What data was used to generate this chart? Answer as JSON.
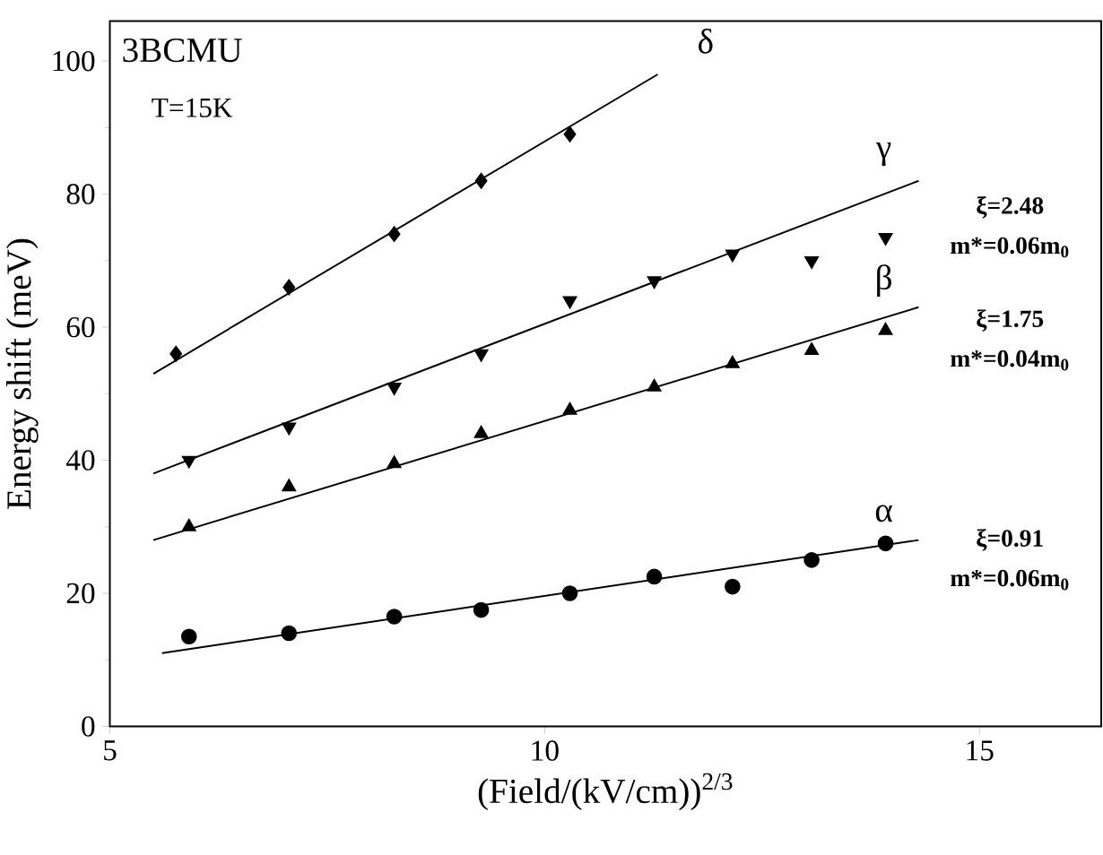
{
  "chart_data": {
    "type": "scatter",
    "title": "3BCMU",
    "subtitle": "T=15K",
    "xlabel": "(Field/(kV/cm))$^{2/3}$",
    "ylabel": "Energy shift (meV)",
    "series": [
      {
        "marker": "diamond",
        "color": "#000000",
        "x": [
          5.76,
          7.06,
          8.27,
          9.27,
          10.29
        ],
        "values": [
          56,
          66,
          74,
          82,
          89
        ]
      },
      {
        "marker": "triangle_down",
        "color": "#000000",
        "x": [
          5.91,
          7.06,
          8.27,
          9.27,
          10.29,
          11.26,
          12.16,
          13.07,
          13.92
        ],
        "values": [
          40,
          45,
          51,
          56,
          64,
          67,
          71,
          70,
          73.5
        ]
      },
      {
        "marker": "triangle",
        "color": "#000000",
        "x": [
          5.91,
          7.06,
          8.27,
          9.27,
          10.29,
          11.26,
          12.16,
          13.07,
          13.92
        ],
        "values": [
          30,
          36,
          39.5,
          44,
          47.5,
          51,
          54.5,
          56.5,
          59.5
        ]
      },
      {
        "marker": "circle",
        "color": "#000000",
        "x": [
          5.91,
          7.06,
          8.27,
          9.27,
          10.29,
          11.26,
          12.16,
          13.07,
          13.92
        ],
        "values": [
          13.5,
          14,
          16.5,
          17.5,
          20,
          22.5,
          21,
          25,
          27.5
        ]
      },
      {
        "type": "line",
        "marker": "none",
        "color": "#000000",
        "x": [
          5.5,
          11.3
        ],
        "values": [
          53,
          98
        ]
      },
      {
        "type": "line",
        "marker": "none",
        "color": "#000000",
        "x": [
          5.5,
          14.3
        ],
        "values": [
          38,
          82
        ]
      },
      {
        "type": "line",
        "marker": "none",
        "color": "#000000",
        "x": [
          5.5,
          14.3
        ],
        "values": [
          28,
          63
        ]
      },
      {
        "type": "line",
        "marker": "none",
        "color": "#000000",
        "x": [
          5.6,
          14.3
        ],
        "values": [
          11,
          28
        ]
      }
    ],
    "annotations": [
      "δ",
      "γ",
      "β",
      "α",
      "ξ=2.48",
      "m*=0.06m$_{0}$",
      "ξ=1.75",
      "m*=0.04m$_{0}$",
      "ξ=0.91",
      "m*=0.06m$_{0}$"
    ],
    "xlim": [
      5,
      16.4
    ],
    "ylim": [
      0,
      106
    ],
    "xticks": [
      5,
      10,
      15
    ],
    "yticks": [
      0,
      20,
      40,
      60,
      80,
      100
    ],
    "grid": false
  }
}
